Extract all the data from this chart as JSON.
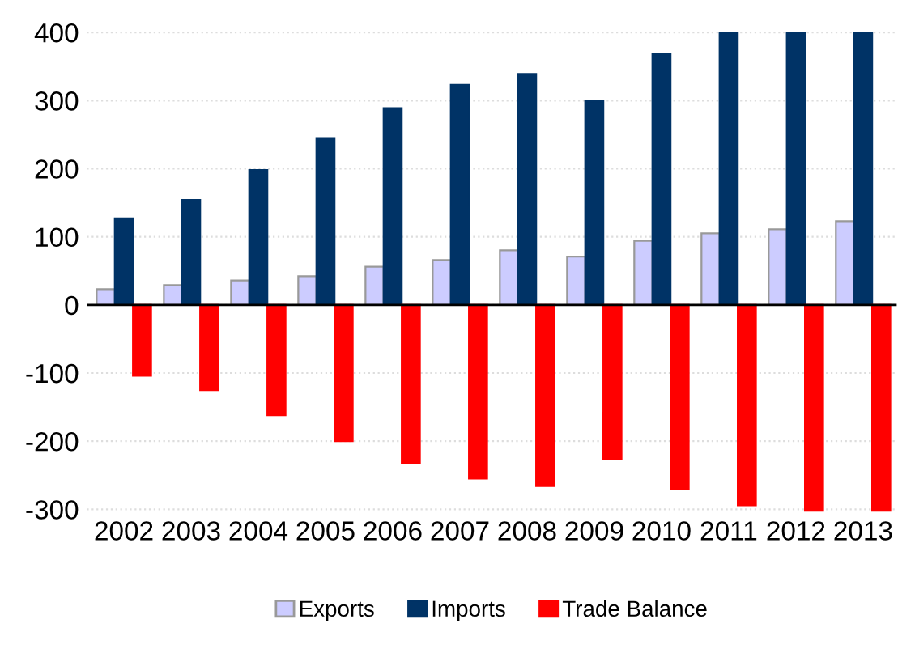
{
  "chart_data": {
    "type": "bar",
    "categories": [
      "2002",
      "2003",
      "2004",
      "2005",
      "2006",
      "2007",
      "2008",
      "2009",
      "2010",
      "2011",
      "2012",
      "2013"
    ],
    "series": [
      {
        "name": "Exports",
        "color": "#ccccff",
        "values": [
          23,
          29,
          36,
          42,
          56,
          66,
          80,
          71,
          94,
          105,
          111,
          123
        ]
      },
      {
        "name": "Imports",
        "color": "#003366",
        "values": [
          127,
          154,
          198,
          245,
          289,
          323,
          339,
          299,
          368,
          400,
          400,
          400
        ]
      },
      {
        "name": "Trade Balance",
        "color": "#ff0000",
        "values": [
          -104,
          -125,
          -162,
          -200,
          -232,
          -255,
          -266,
          -226,
          -271,
          -294,
          -302,
          -302
        ]
      }
    ],
    "ylim": [
      -305,
      400
    ],
    "yticks": [
      -300,
      -200,
      -100,
      0,
      100,
      200,
      300,
      400
    ],
    "grid": "y",
    "legend": "bottom"
  }
}
